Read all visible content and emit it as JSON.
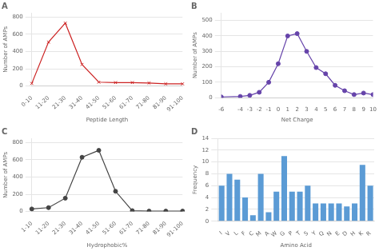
{
  "chart_data": [
    {
      "type": "line",
      "title": "A",
      "categories": [
        "0-10",
        "11-20",
        "21-30",
        "31-40",
        "41-50",
        "51-60",
        "61-70",
        "71-80",
        "81-90",
        "91-100"
      ],
      "values": [
        30,
        510,
        730,
        250,
        45,
        40,
        40,
        35,
        25,
        25
      ],
      "color": "#cc2222",
      "marker": "x",
      "xlabel": "Peptide Length",
      "ylabel": "Number of AMPs",
      "ylim": [
        0,
        850
      ],
      "yticks": [
        0,
        200,
        400,
        600,
        800
      ],
      "grid": "y"
    },
    {
      "type": "line",
      "title": "B",
      "x": [
        -6,
        -4,
        -3,
        -2,
        -1,
        0,
        1,
        2,
        3,
        4,
        5,
        6,
        7,
        8,
        9,
        10
      ],
      "values": [
        5,
        8,
        15,
        35,
        100,
        220,
        400,
        415,
        300,
        195,
        155,
        80,
        45,
        20,
        30,
        20
      ],
      "color": "#6644aa",
      "marker": "o",
      "xlabel": "Net Charge",
      "ylabel": "Number of AMPs",
      "xlim": [
        -6,
        10
      ],
      "xticks": [
        -6,
        -4,
        -3,
        -2,
        -1,
        0,
        1,
        2,
        3,
        4,
        5,
        6,
        7,
        8,
        9,
        10
      ],
      "ylim": [
        0,
        550
      ],
      "yticks": [
        0,
        100,
        200,
        300,
        400,
        500
      ],
      "grid": "y"
    },
    {
      "type": "line",
      "title": "C",
      "categories": [
        "1-10",
        "11-20",
        "21-30",
        "31-40",
        "41-50",
        "51-60",
        "61-70",
        "71-80",
        "81-90",
        "91-100"
      ],
      "values": [
        30,
        45,
        155,
        630,
        710,
        235,
        10,
        5,
        5,
        5
      ],
      "color": "#444444",
      "marker": "o",
      "xlabel": "Hydrophobic%",
      "ylabel": "Number of AMPs",
      "ylim": [
        0,
        850
      ],
      "yticks": [
        0,
        200,
        400,
        600,
        800
      ],
      "grid": "y"
    },
    {
      "type": "bar",
      "title": "D",
      "categories": [
        "I",
        "V",
        "L",
        "F",
        "C",
        "M",
        "A",
        "W",
        "G",
        "P",
        "T",
        "S",
        "Y",
        "Q",
        "N",
        "E",
        "D",
        "H",
        "K",
        "R"
      ],
      "values": [
        6,
        8,
        7,
        4,
        1,
        8,
        1.5,
        5,
        11,
        5,
        5,
        6,
        3,
        3,
        3,
        3,
        2.5,
        3,
        9.5,
        6
      ],
      "color": "#5b9bd5",
      "xlabel": "Amino Acid",
      "ylabel": "Frequency",
      "ylim": [
        0,
        14
      ],
      "yticks": [
        0,
        2,
        4,
        6,
        8,
        10,
        12,
        14
      ],
      "grid": "y"
    }
  ]
}
